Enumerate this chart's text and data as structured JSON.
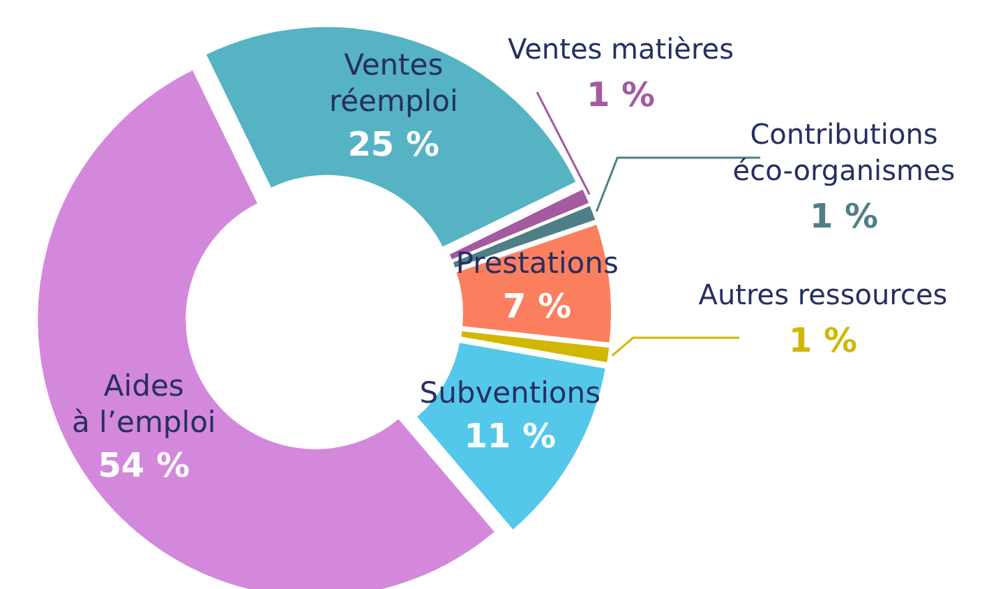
{
  "chart_data": {
    "type": "donut",
    "categories": [
      "Ventes réemploi",
      "Ventes matières",
      "Contributions éco-organismes",
      "Prestations",
      "Autres ressources",
      "Subventions",
      "Aides à l’emploi"
    ],
    "values": [
      25,
      1,
      1,
      7,
      1,
      11,
      54
    ],
    "value_labels": [
      "25 %",
      "1 %",
      "1 %",
      "7 %",
      "1 %",
      "11 %",
      "54 %"
    ],
    "colors": [
      "#55b3c4",
      "#a35aa0",
      "#4f7f86",
      "#fb7f5f",
      "#d2b700",
      "#54c8ea",
      "#d488dc"
    ]
  }
}
